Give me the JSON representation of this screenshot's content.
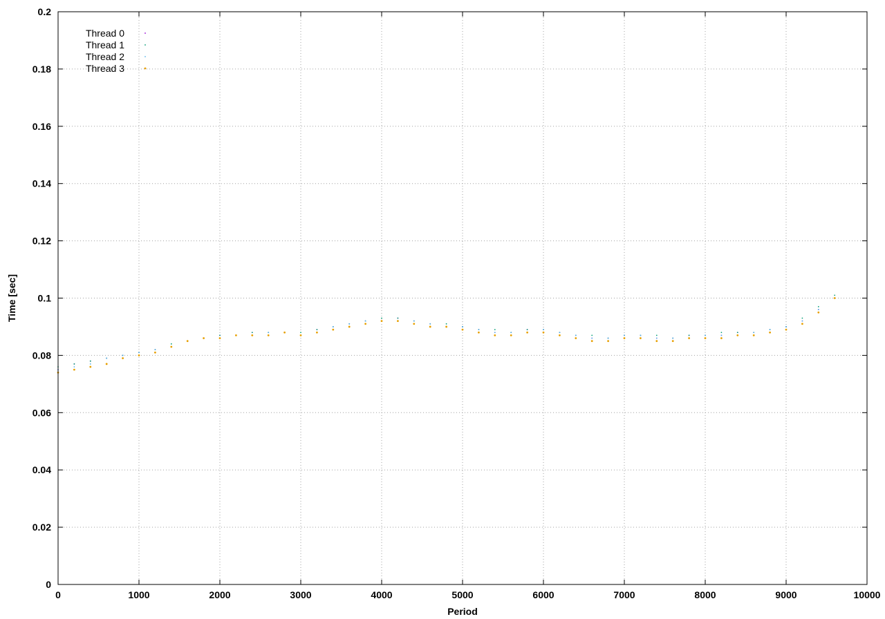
{
  "chart_data": {
    "type": "scatter",
    "title": "",
    "xlabel": "Period",
    "ylabel": "Time [sec]",
    "xlim": [
      0,
      10000
    ],
    "ylim": [
      0,
      0.2
    ],
    "x_ticks": [
      0,
      1000,
      2000,
      3000,
      4000,
      5000,
      6000,
      7000,
      8000,
      9000,
      10000
    ],
    "y_ticks": [
      0,
      0.02,
      0.04,
      0.06,
      0.08,
      0.1,
      0.12,
      0.14,
      0.16,
      0.18,
      0.2
    ],
    "x_tick_labels": [
      "0",
      "1000",
      "2000",
      "3000",
      "4000",
      "5000",
      "6000",
      "7000",
      "8000",
      "9000",
      "10000"
    ],
    "y_tick_labels": [
      "0",
      "0.02",
      "0.04",
      "0.06",
      "0.08",
      "0.1",
      "0.12",
      "0.14",
      "0.16",
      "0.18",
      "0.2"
    ],
    "grid": true,
    "legend_position": "top-left",
    "series": [
      {
        "name": "Thread 0",
        "color": "#9400d3",
        "x": [
          0,
          200,
          400,
          600,
          800,
          1000,
          1200,
          1400,
          1600,
          1800,
          2000,
          2200,
          2400,
          2600,
          2800,
          3000,
          3200,
          3400,
          3600,
          3800,
          4000,
          4200,
          4400,
          4600,
          4800,
          5000,
          5200,
          5400,
          5600,
          5800,
          6000,
          6200,
          6400,
          6600,
          6800,
          7000,
          7200,
          7400,
          7600,
          7800,
          8000,
          8200,
          8400,
          8600,
          8800,
          9000,
          9200,
          9400,
          9600
        ],
        "y": [
          0.075,
          0.077,
          0.078,
          0.079,
          0.08,
          0.081,
          0.082,
          0.083,
          0.085,
          0.086,
          0.087,
          0.087,
          0.088,
          0.088,
          0.088,
          0.087,
          0.089,
          0.09,
          0.091,
          0.092,
          0.092,
          0.093,
          0.092,
          0.091,
          0.09,
          0.09,
          0.089,
          0.088,
          0.088,
          0.089,
          0.089,
          0.088,
          0.087,
          0.086,
          0.086,
          0.087,
          0.087,
          0.086,
          0.086,
          0.087,
          0.087,
          0.087,
          0.088,
          0.088,
          0.089,
          0.09,
          0.092,
          0.096,
          0.1
        ]
      },
      {
        "name": "Thread 1",
        "color": "#009e73",
        "x": [
          0,
          200,
          400,
          600,
          800,
          1000,
          1200,
          1400,
          1600,
          1800,
          2000,
          2200,
          2400,
          2600,
          2800,
          3000,
          3200,
          3400,
          3600,
          3800,
          4000,
          4200,
          4400,
          4600,
          4800,
          5000,
          5200,
          5400,
          5600,
          5800,
          6000,
          6200,
          6400,
          6600,
          6800,
          7000,
          7200,
          7400,
          7600,
          7800,
          8000,
          8200,
          8400,
          8600,
          8800,
          9000,
          9200,
          9400,
          9600
        ],
        "y": [
          0.076,
          0.077,
          0.078,
          0.079,
          0.08,
          0.081,
          0.082,
          0.084,
          0.085,
          0.086,
          0.087,
          0.087,
          0.088,
          0.088,
          0.088,
          0.088,
          0.089,
          0.09,
          0.091,
          0.092,
          0.093,
          0.093,
          0.092,
          0.091,
          0.091,
          0.09,
          0.089,
          0.089,
          0.088,
          0.089,
          0.089,
          0.088,
          0.087,
          0.087,
          0.086,
          0.087,
          0.087,
          0.087,
          0.086,
          0.087,
          0.087,
          0.088,
          0.088,
          0.088,
          0.089,
          0.09,
          0.093,
          0.097,
          0.101
        ]
      },
      {
        "name": "Thread 2",
        "color": "#56b4e9",
        "x": [
          0,
          200,
          400,
          600,
          800,
          1000,
          1200,
          1400,
          1600,
          1800,
          2000,
          2200,
          2400,
          2600,
          2800,
          3000,
          3200,
          3400,
          3600,
          3800,
          4000,
          4200,
          4400,
          4600,
          4800,
          5000,
          5200,
          5400,
          5600,
          5800,
          6000,
          6200,
          6400,
          6600,
          6800,
          7000,
          7200,
          7400,
          7600,
          7800,
          8000,
          8200,
          8400,
          8600,
          8800,
          9000,
          9200,
          9400,
          9600
        ],
        "y": [
          0.075,
          0.076,
          0.077,
          0.079,
          0.08,
          0.081,
          0.082,
          0.083,
          0.085,
          0.086,
          0.086,
          0.087,
          0.087,
          0.088,
          0.088,
          0.087,
          0.088,
          0.09,
          0.091,
          0.092,
          0.092,
          0.092,
          0.092,
          0.091,
          0.09,
          0.09,
          0.089,
          0.088,
          0.088,
          0.088,
          0.089,
          0.088,
          0.087,
          0.086,
          0.086,
          0.087,
          0.087,
          0.086,
          0.086,
          0.086,
          0.087,
          0.087,
          0.087,
          0.088,
          0.089,
          0.09,
          0.092,
          0.096,
          0.1
        ]
      },
      {
        "name": "Thread 3",
        "color": "#e69f00",
        "x": [
          0,
          200,
          400,
          600,
          800,
          1000,
          1200,
          1400,
          1600,
          1800,
          2000,
          2200,
          2400,
          2600,
          2800,
          3000,
          3200,
          3400,
          3600,
          3800,
          4000,
          4200,
          4400,
          4600,
          4800,
          5000,
          5200,
          5400,
          5600,
          5800,
          6000,
          6200,
          6400,
          6600,
          6800,
          7000,
          7200,
          7400,
          7600,
          7800,
          8000,
          8200,
          8400,
          8600,
          8800,
          9000,
          9200,
          9400,
          9600
        ],
        "y": [
          0.074,
          0.075,
          0.076,
          0.077,
          0.079,
          0.08,
          0.081,
          0.083,
          0.085,
          0.086,
          0.086,
          0.087,
          0.087,
          0.087,
          0.088,
          0.087,
          0.088,
          0.089,
          0.09,
          0.091,
          0.092,
          0.092,
          0.091,
          0.09,
          0.09,
          0.089,
          0.088,
          0.087,
          0.087,
          0.088,
          0.088,
          0.087,
          0.086,
          0.085,
          0.085,
          0.086,
          0.086,
          0.085,
          0.085,
          0.086,
          0.086,
          0.086,
          0.087,
          0.087,
          0.088,
          0.089,
          0.091,
          0.095,
          0.1
        ]
      }
    ]
  }
}
